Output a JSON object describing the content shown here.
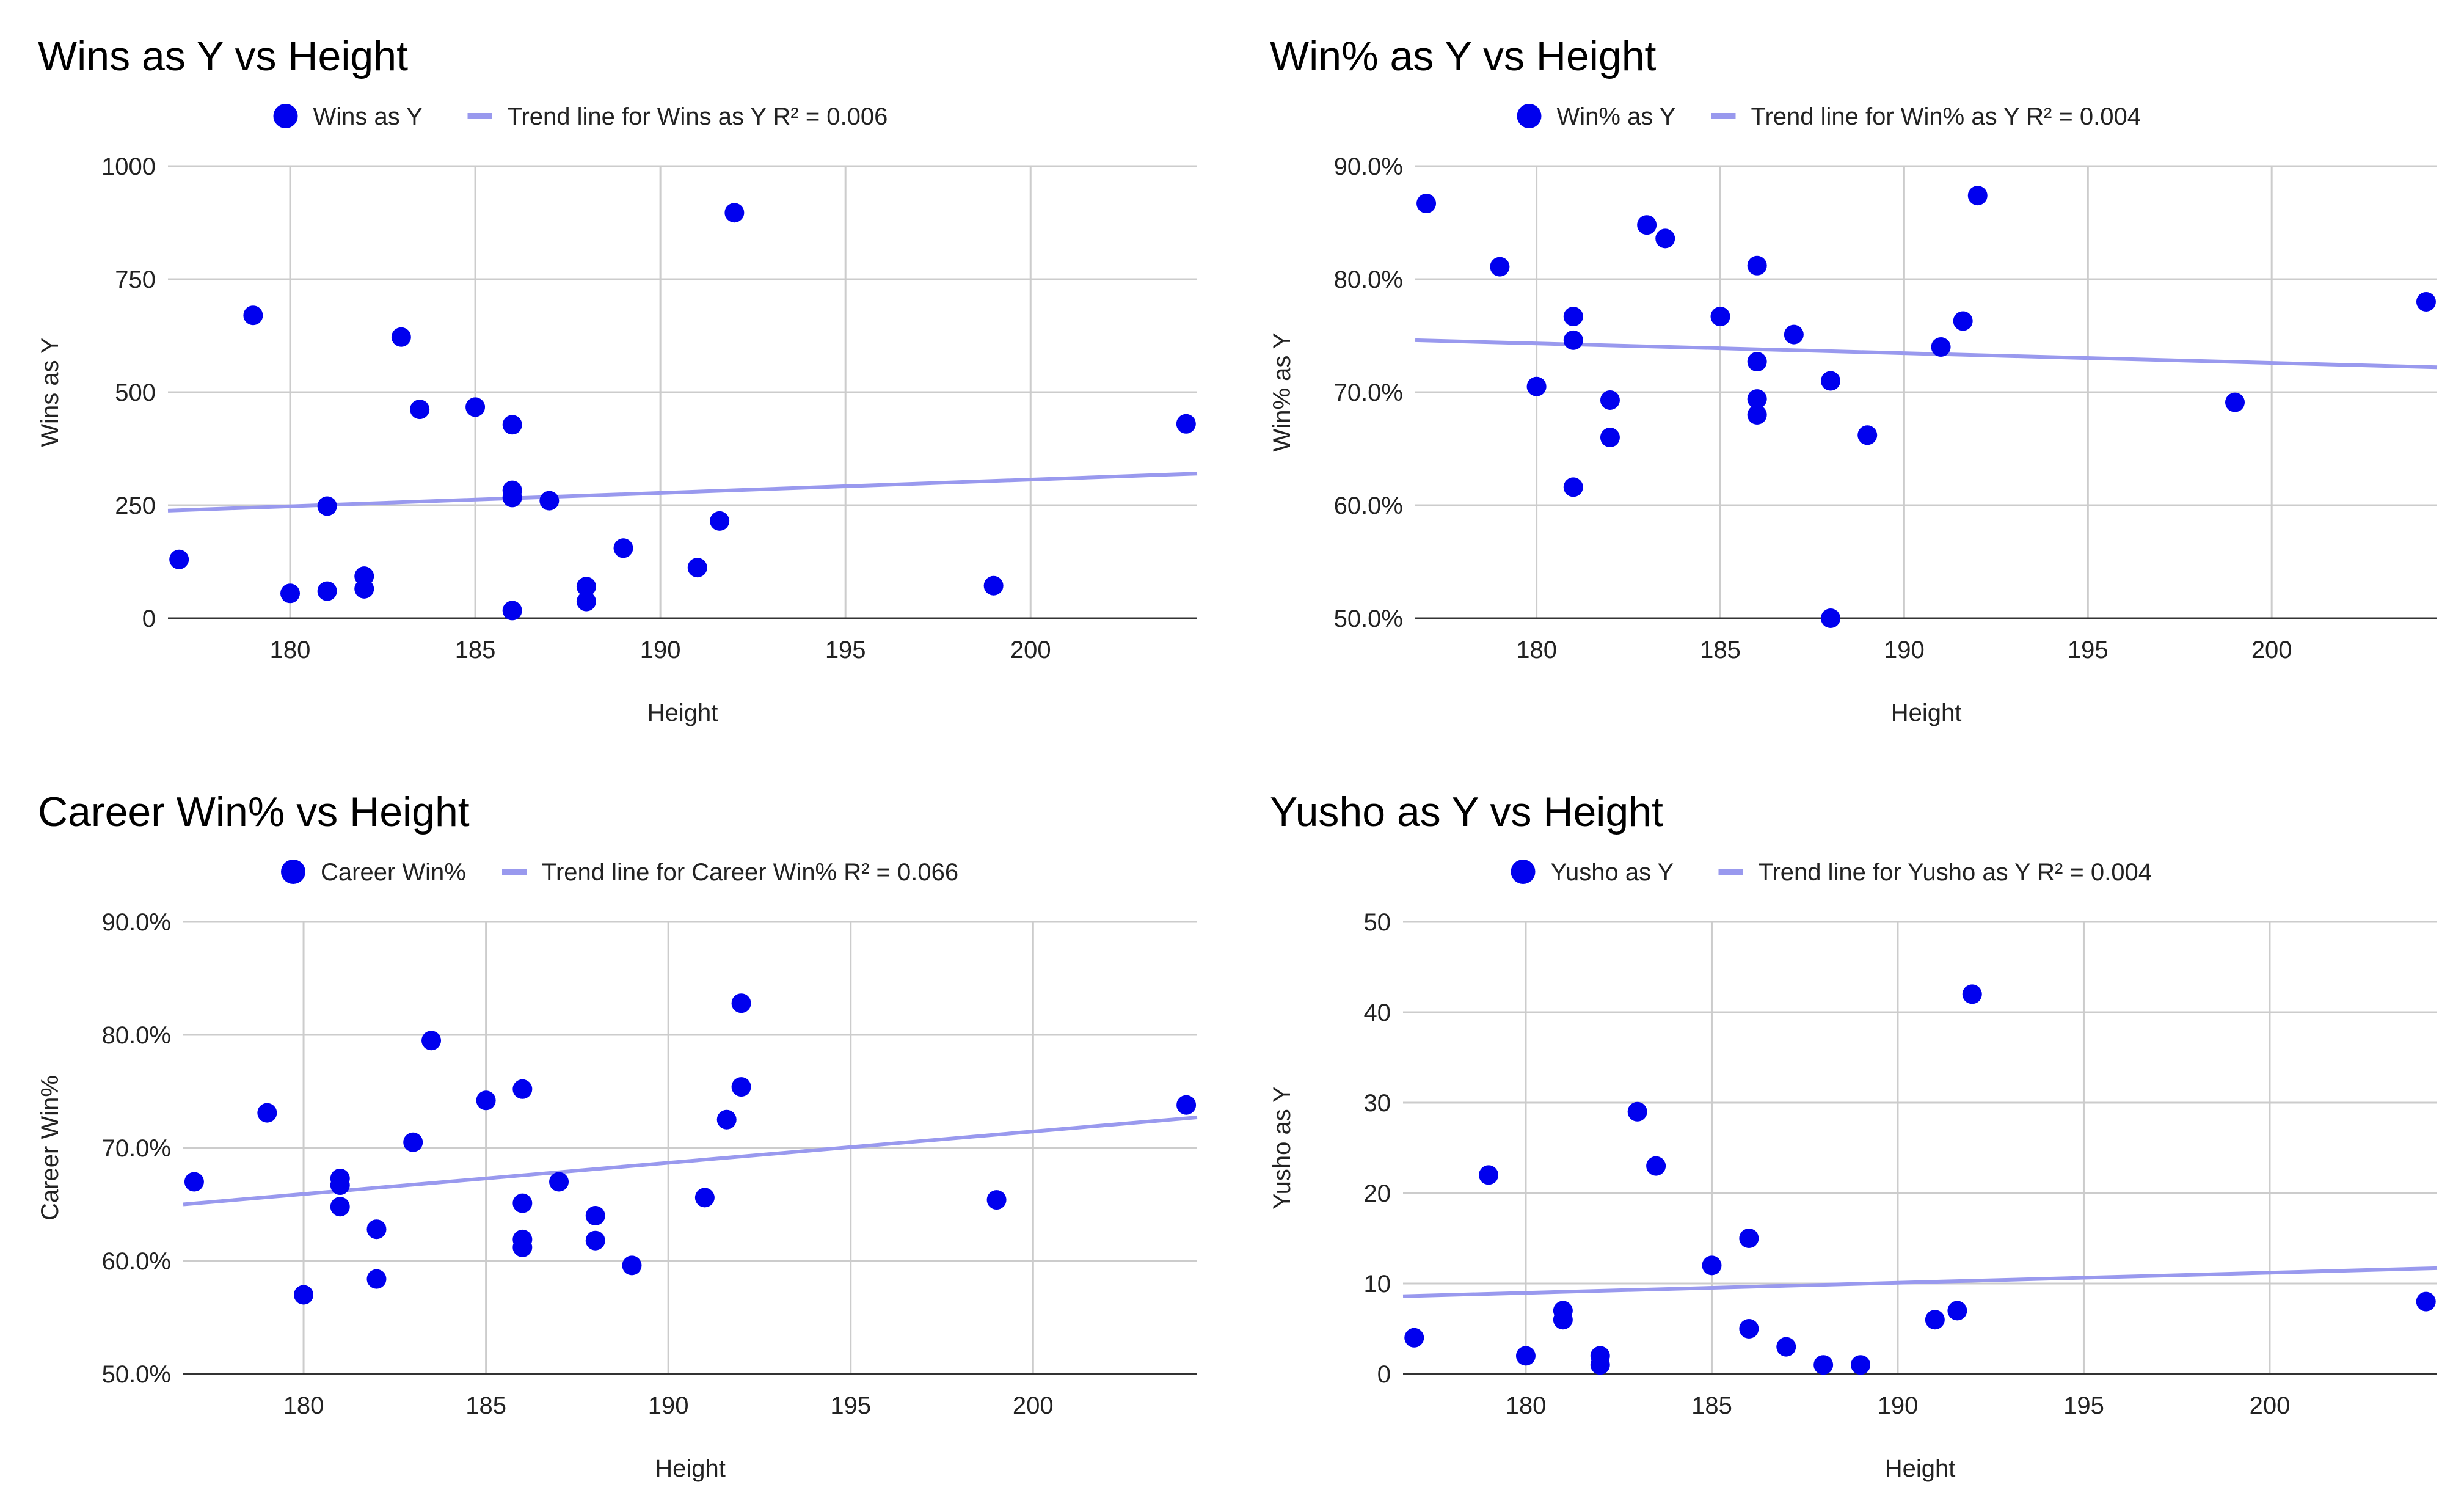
{
  "chart_data": [
    {
      "type": "scatter",
      "title": "Wins as Y vs Height",
      "xlabel": "Height",
      "ylabel": "Wins as Y",
      "xlim": [
        176.7,
        204.5
      ],
      "ylim": [
        0,
        1000
      ],
      "x_ticks": [
        180,
        185,
        190,
        195,
        200
      ],
      "y_ticks": [
        0,
        250,
        500,
        750,
        1000
      ],
      "y_tick_labels": [
        "0",
        "250",
        "500",
        "750",
        "1000"
      ],
      "legend_position": "top",
      "series_label": "Wins as Y",
      "trend_label": "Trend line for Wins as Y R² = 0.006",
      "trend_y": [
        238,
        320
      ],
      "points": [
        [
          177,
          130
        ],
        [
          179,
          670
        ],
        [
          180,
          55
        ],
        [
          181,
          60
        ],
        [
          181,
          248
        ],
        [
          182,
          93
        ],
        [
          182,
          65
        ],
        [
          183,
          622
        ],
        [
          183.5,
          462
        ],
        [
          185,
          467
        ],
        [
          186,
          428
        ],
        [
          186,
          283
        ],
        [
          186,
          267
        ],
        [
          186,
          17
        ],
        [
          187,
          260
        ],
        [
          188,
          70
        ],
        [
          188,
          37
        ],
        [
          189,
          155
        ],
        [
          191,
          112
        ],
        [
          191.6,
          215
        ],
        [
          192,
          897
        ],
        [
          199,
          72
        ],
        [
          204.2,
          430
        ]
      ],
      "colors": {
        "point": "#0000ee",
        "trend": "#9999ee"
      }
    },
    {
      "type": "scatter",
      "title": "Win% as Y vs Height",
      "xlabel": "Height",
      "ylabel": "Win% as Y",
      "xlim": [
        176.7,
        204.5
      ],
      "ylim": [
        0.5,
        0.9
      ],
      "x_ticks": [
        180,
        185,
        190,
        195,
        200
      ],
      "y_ticks": [
        0.5,
        0.6,
        0.7,
        0.8,
        0.9
      ],
      "y_tick_labels": [
        "50.0%",
        "60.0%",
        "70.0%",
        "80.0%",
        "90.0%"
      ],
      "legend_position": "top",
      "series_label": "Win% as Y",
      "trend_label": "Trend line for Win% as Y R² = 0.004",
      "trend_y": [
        0.746,
        0.722
      ],
      "points": [
        [
          177,
          0.867
        ],
        [
          179,
          0.811
        ],
        [
          180,
          0.705
        ],
        [
          181,
          0.767
        ],
        [
          181,
          0.746
        ],
        [
          181,
          0.616
        ],
        [
          182,
          0.693
        ],
        [
          182,
          0.66
        ],
        [
          183,
          0.848
        ],
        [
          183.5,
          0.836
        ],
        [
          185,
          0.767
        ],
        [
          186,
          0.812
        ],
        [
          186,
          0.727
        ],
        [
          186,
          0.694
        ],
        [
          186,
          0.68
        ],
        [
          187,
          0.751
        ],
        [
          188,
          0.71
        ],
        [
          188,
          0.5
        ],
        [
          189,
          0.662
        ],
        [
          191,
          0.74
        ],
        [
          191.6,
          0.763
        ],
        [
          192,
          0.874
        ],
        [
          199,
          0.691
        ],
        [
          204.2,
          0.78
        ]
      ],
      "colors": {
        "point": "#0000ee",
        "trend": "#9999ee"
      }
    },
    {
      "type": "scatter",
      "title": "Career Win% vs Height",
      "xlabel": "Height",
      "ylabel": "Career Win%",
      "xlim": [
        176.7,
        204.5
      ],
      "ylim": [
        0.5,
        0.9
      ],
      "x_ticks": [
        180,
        185,
        190,
        195,
        200
      ],
      "y_ticks": [
        0.5,
        0.6,
        0.7,
        0.8,
        0.9
      ],
      "y_tick_labels": [
        "50.0%",
        "60.0%",
        "70.0%",
        "80.0%",
        "90.0%"
      ],
      "legend_position": "top",
      "series_label": "Career Win%",
      "trend_label": "Trend line for Career Win% R² = 0.066",
      "trend_y": [
        0.65,
        0.727
      ],
      "points": [
        [
          177,
          0.67
        ],
        [
          179,
          0.731
        ],
        [
          180,
          0.57
        ],
        [
          181,
          0.673
        ],
        [
          181,
          0.667
        ],
        [
          181,
          0.648
        ],
        [
          182,
          0.628
        ],
        [
          182,
          0.584
        ],
        [
          183,
          0.705
        ],
        [
          183.5,
          0.795
        ],
        [
          185,
          0.742
        ],
        [
          186,
          0.752
        ],
        [
          186,
          0.651
        ],
        [
          186,
          0.619
        ],
        [
          186,
          0.612
        ],
        [
          187,
          0.67
        ],
        [
          188,
          0.64
        ],
        [
          188,
          0.618
        ],
        [
          189,
          0.596
        ],
        [
          191,
          0.656
        ],
        [
          191.6,
          0.725
        ],
        [
          192,
          0.828
        ],
        [
          192,
          0.754
        ],
        [
          199,
          0.654
        ],
        [
          204.2,
          0.738
        ]
      ],
      "colors": {
        "point": "#0000ee",
        "trend": "#9999ee"
      }
    },
    {
      "type": "scatter",
      "title": "Yusho as Y vs Height",
      "xlabel": "Height",
      "ylabel": "Yusho as Y",
      "xlim": [
        176.7,
        204.5
      ],
      "ylim": [
        0,
        50
      ],
      "x_ticks": [
        180,
        185,
        190,
        195,
        200
      ],
      "y_ticks": [
        0,
        10,
        20,
        30,
        40,
        50
      ],
      "y_tick_labels": [
        "0",
        "10",
        "20",
        "30",
        "40",
        "50"
      ],
      "legend_position": "top",
      "series_label": "Yusho as Y",
      "trend_label": "Trend line for Yusho as Y R² = 0.004",
      "trend_y": [
        8.6,
        11.7
      ],
      "points": [
        [
          177,
          4
        ],
        [
          179,
          22
        ],
        [
          180,
          2
        ],
        [
          181,
          7
        ],
        [
          181,
          6
        ],
        [
          182,
          2
        ],
        [
          182,
          1
        ],
        [
          183,
          29
        ],
        [
          183.5,
          23
        ],
        [
          185,
          12
        ],
        [
          186,
          15
        ],
        [
          186,
          5
        ],
        [
          187,
          3
        ],
        [
          188,
          1
        ],
        [
          189,
          1
        ],
        [
          191,
          6
        ],
        [
          191.6,
          7
        ],
        [
          192,
          42
        ],
        [
          204.2,
          8
        ]
      ],
      "colors": {
        "point": "#0000ee",
        "trend": "#9999ee"
      }
    }
  ]
}
